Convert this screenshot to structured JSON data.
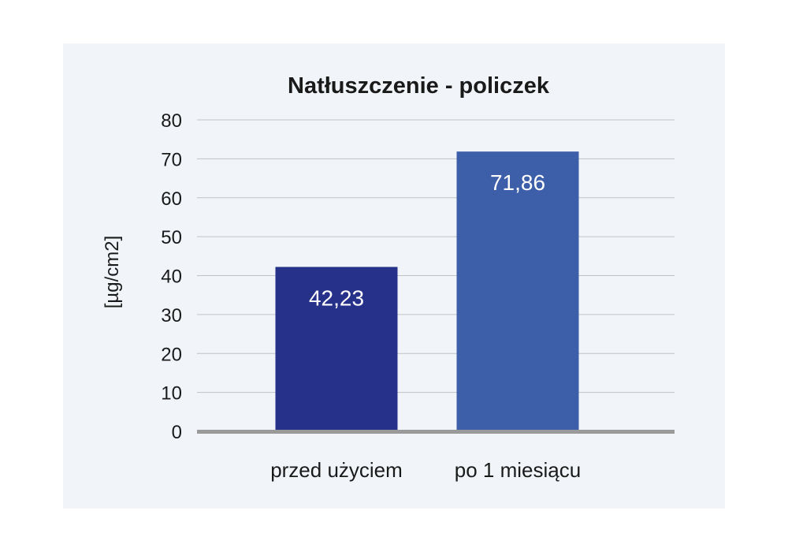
{
  "chart_data": {
    "type": "bar",
    "title": "Natłuszczenie - policzek",
    "ylabel": "[µg/cm2]",
    "xlabel": "",
    "ylim": [
      0,
      80
    ],
    "yticks": [
      0,
      10,
      20,
      30,
      40,
      50,
      60,
      70,
      80
    ],
    "grid": true,
    "categories": [
      "przed użyciem",
      "po 1 miesiącu"
    ],
    "values": [
      42.23,
      71.86
    ],
    "value_labels": [
      "42,23",
      "71,86"
    ],
    "bar_colors": [
      "#263189",
      "#3d5ea8"
    ],
    "gridline_color": "#c2c2c2",
    "baseline_color": "#9a9a9a"
  }
}
